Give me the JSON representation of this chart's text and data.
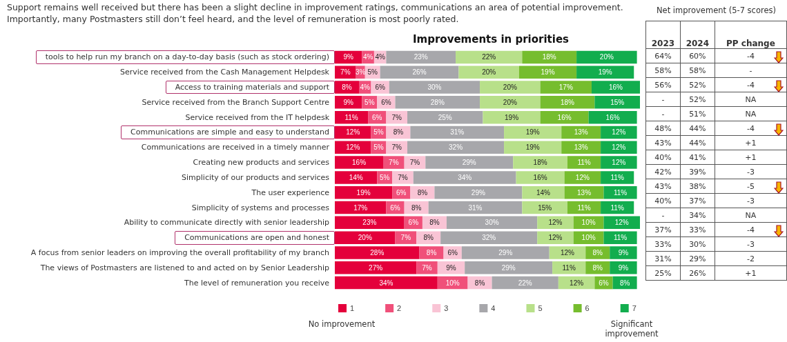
{
  "chart_data": [
    {
      "type": "bar",
      "orientation": "horizontal",
      "stacked": true,
      "title": "Improvements in priorities",
      "subtitle": "Support remains well received but there has been a slight decline in improvement ratings, communications an area of potential improvement. Importantly, many Postmasters still don’t feel heard, and the level of remuneration is most poorly rated.",
      "categories": [
        "tools to help run my branch on a day-to-day basis (such as stock ordering)",
        "Service received from the Cash Management Helpdesk",
        "Access to training materials and support",
        "Service received from the Branch Support Centre",
        "Service received from the IT helpdesk",
        "Communications are simple and easy to understand",
        "Communications are received in a timely manner",
        "Creating new products and services",
        "Simplicity of our products and services",
        "The user experience",
        "Simplicity of systems and processes",
        "Ability to communicate directly with senior leadership",
        "Communications are open and honest",
        "A focus from senior leaders on improving the overall profitability of my branch",
        "The views of Postmasters are listened to and acted on by Senior Leadership",
        "The level of remuneration you receive"
      ],
      "series": [
        {
          "name": "1",
          "color": "#e4003b",
          "values": [
            9,
            7,
            8,
            9,
            11,
            12,
            12,
            16,
            14,
            19,
            17,
            23,
            20,
            28,
            27,
            34
          ],
          "value_labels": [
            "9%",
            "7%",
            "8%",
            "9%",
            "11%",
            "12%",
            "12%",
            "16%",
            "14%",
            "19%",
            "17%",
            "23%",
            "20%",
            "28%",
            "27%",
            "34%"
          ]
        },
        {
          "name": "2",
          "color": "#f0507a",
          "values": [
            4,
            3,
            4,
            5,
            6,
            5,
            5,
            7,
            5,
            6,
            6,
            6,
            7,
            8,
            7,
            10
          ],
          "value_labels": [
            "4%",
            "3%",
            "4%",
            "5%",
            "6%",
            "5%",
            "5%",
            "7%",
            "5%",
            "6%",
            "6%",
            "6%",
            "7%",
            "8%",
            "7%",
            "10%"
          ]
        },
        {
          "name": "3",
          "color": "#f9c4d5",
          "values": [
            4,
            5,
            6,
            6,
            7,
            8,
            7,
            7,
            7,
            8,
            8,
            8,
            8,
            6,
            9,
            8
          ],
          "value_labels": [
            "4%",
            "5%",
            "6%",
            "6%",
            "7%",
            "8%",
            "7%",
            "7%",
            "7%",
            "8%",
            "8%",
            "8%",
            "8%",
            "6%",
            "9%",
            "8%"
          ]
        },
        {
          "name": "4",
          "color": "#a7a7ab",
          "values": [
            23,
            26,
            30,
            28,
            25,
            31,
            32,
            29,
            34,
            29,
            31,
            30,
            32,
            29,
            29,
            22
          ],
          "value_labels": [
            "23%",
            "26%",
            "30%",
            "28%",
            "25%",
            "31%",
            "32%",
            "29%",
            "34%",
            "29%",
            "31%",
            "30%",
            "32%",
            "29%",
            "29%",
            "22%"
          ]
        },
        {
          "name": "5",
          "color": "#b8e08a",
          "values": [
            22,
            20,
            20,
            20,
            19,
            19,
            19,
            18,
            16,
            14,
            15,
            12,
            12,
            12,
            11,
            12
          ],
          "value_labels": [
            "22%",
            "20%",
            "20%",
            "20%",
            "19%",
            "19%",
            "19%",
            "18%",
            "16%",
            "14%",
            "15%",
            "12%",
            "12%",
            "12%",
            "11%",
            "12%"
          ]
        },
        {
          "name": "6",
          "color": "#76bd2e",
          "values": [
            18,
            19,
            17,
            18,
            16,
            13,
            13,
            11,
            12,
            13,
            11,
            10,
            10,
            8,
            8,
            6
          ],
          "value_labels": [
            "18%",
            "19%",
            "17%",
            "18%",
            "16%",
            "13%",
            "13%",
            "11%",
            "12%",
            "13%",
            "11%",
            "10%",
            "10%",
            "8%",
            "8%",
            "6%"
          ]
        },
        {
          "name": "7",
          "color": "#12ad4e",
          "values": [
            20,
            19,
            16,
            15,
            16,
            12,
            12,
            12,
            11,
            11,
            11,
            12,
            11,
            9,
            9,
            8
          ],
          "value_labels": [
            "20%",
            "19%",
            "16%",
            "15%",
            "16%",
            "12%",
            "12%",
            "12%",
            "11%",
            "11%",
            "11%",
            "12%",
            "11%",
            "9%",
            "9%",
            "8%"
          ]
        }
      ],
      "legend": "bottom",
      "annotations": [
        "No improvement",
        "Significant improvement"
      ]
    },
    {
      "type": "other",
      "title": "Net improvement (5-7 scores)",
      "categories": [
        "2023",
        "2024",
        "PP change"
      ],
      "cell_labels": [
        [
          "64%",
          "60%",
          "-4"
        ],
        [
          "58%",
          "58%",
          "-"
        ],
        [
          "56%",
          "52%",
          "-4"
        ],
        [
          "-",
          "52%",
          "NA"
        ],
        [
          "-",
          "51%",
          "NA"
        ],
        [
          "48%",
          "44%",
          "-4"
        ],
        [
          "43%",
          "44%",
          "+1"
        ],
        [
          "40%",
          "41%",
          "+1"
        ],
        [
          "42%",
          "39%",
          "-3"
        ],
        [
          "43%",
          "38%",
          "-5"
        ],
        [
          "40%",
          "37%",
          "-3"
        ],
        [
          "-",
          "34%",
          "NA"
        ],
        [
          "37%",
          "33%",
          "-4"
        ],
        [
          "33%",
          "30%",
          "-3"
        ],
        [
          "31%",
          "29%",
          "-2"
        ],
        [
          "25%",
          "26%",
          "+1"
        ]
      ]
    }
  ]
}
